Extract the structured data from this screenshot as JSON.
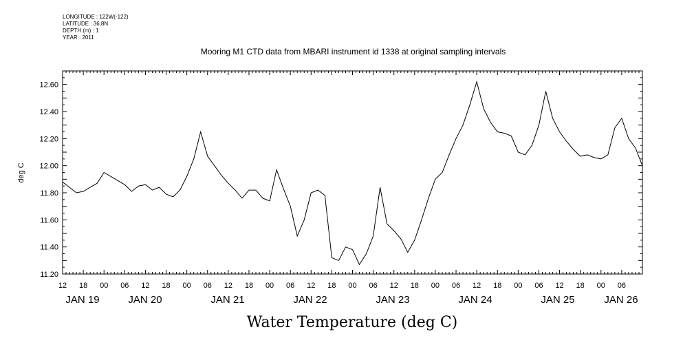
{
  "metadata": [
    "LONGITUDE : 122W(-122)",
    "LATITUDE : 36.8N",
    "DEPTH (m) : 1",
    "YEAR : 2011"
  ],
  "chart_data": {
    "type": "line",
    "title": "Mooring M1 CTD data from MBARI instrument id 1338 at original sampling intervals",
    "xlabel": "Water Temperature (deg C)",
    "ylabel": "deg C",
    "ylim": [
      11.2,
      12.7
    ],
    "xlim_hours_from_jan19_00": [
      -12,
      156
    ],
    "y_ticks": [
      "11.20",
      "11.40",
      "11.60",
      "11.80",
      "12.00",
      "12.20",
      "12.40",
      "12.60"
    ],
    "x_hour_tick_labels": [
      "12",
      "18",
      "00",
      "06",
      "12",
      "18",
      "00",
      "06",
      "12",
      "18",
      "00",
      "06",
      "12",
      "18",
      "00",
      "06",
      "12",
      "18",
      "00",
      "06",
      "12",
      "18",
      "00",
      "06",
      "12",
      "18",
      "00",
      "06"
    ],
    "x_day_labels": [
      "JAN 19",
      "JAN 20",
      "JAN 21",
      "JAN 22",
      "JAN 23",
      "JAN 24",
      "JAN 25",
      "JAN 26"
    ],
    "grid": false,
    "series": [
      {
        "name": "",
        "x_unit": "hours from JAN 19 00",
        "x": [
          -12,
          -10,
          -8,
          -6,
          -4,
          -2,
          0,
          2,
          4,
          6,
          8,
          10,
          12,
          14,
          16,
          18,
          20,
          22,
          24,
          26,
          28,
          30,
          32,
          34,
          36,
          38,
          40,
          42,
          44,
          46,
          48,
          50,
          52,
          54,
          56,
          58,
          60,
          62,
          64,
          66,
          68,
          70,
          72,
          74,
          76,
          78,
          80,
          82,
          84,
          86,
          88,
          90,
          92,
          94,
          96,
          98,
          100,
          102,
          104,
          106,
          108,
          110,
          112,
          114,
          116,
          118,
          120,
          122,
          124,
          126,
          128,
          130,
          132,
          134,
          136,
          138,
          140,
          142,
          144,
          146,
          148,
          150,
          152,
          154,
          156
        ],
        "y": [
          11.88,
          11.84,
          11.8,
          11.81,
          11.84,
          11.87,
          11.95,
          11.92,
          11.89,
          11.86,
          11.81,
          11.85,
          11.86,
          11.82,
          11.84,
          11.79,
          11.77,
          11.82,
          11.92,
          12.05,
          12.25,
          12.07,
          12.0,
          11.93,
          11.87,
          11.82,
          11.76,
          11.82,
          11.82,
          11.76,
          11.74,
          11.97,
          11.83,
          11.7,
          11.48,
          11.6,
          11.8,
          11.82,
          11.78,
          11.32,
          11.3,
          11.4,
          11.38,
          11.27,
          11.35,
          11.48,
          11.84,
          11.57,
          11.52,
          11.46,
          11.36,
          11.45,
          11.6,
          11.76,
          11.9,
          11.95,
          12.08,
          12.2,
          12.3,
          12.45,
          12.62,
          12.42,
          12.32,
          12.25,
          12.24,
          12.22,
          12.1,
          12.08,
          12.15,
          12.3,
          12.55,
          12.35,
          12.25,
          12.18,
          12.12,
          12.07,
          12.08,
          12.06,
          12.05,
          12.08,
          12.28,
          12.35,
          12.2,
          12.13,
          12.0
        ]
      }
    ]
  }
}
